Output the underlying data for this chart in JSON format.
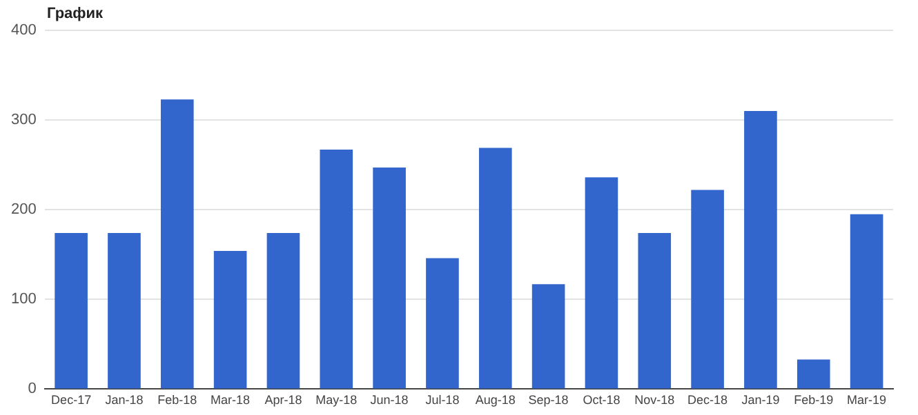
{
  "chart_data": {
    "type": "bar",
    "title": "График",
    "categories": [
      "Dec-17",
      "Jan-18",
      "Feb-18",
      "Mar-18",
      "Apr-18",
      "May-18",
      "Jun-18",
      "Jul-18",
      "Aug-18",
      "Sep-18",
      "Oct-18",
      "Nov-18",
      "Dec-18",
      "Jan-19",
      "Feb-19",
      "Mar-19"
    ],
    "values": [
      174,
      174,
      323,
      154,
      174,
      267,
      247,
      146,
      269,
      117,
      236,
      174,
      222,
      310,
      33,
      195
    ],
    "color": "#3366cc",
    "ylim": [
      0,
      400
    ],
    "yticks": [
      0,
      100,
      200,
      300,
      400
    ],
    "grid": "y",
    "legend": false
  }
}
